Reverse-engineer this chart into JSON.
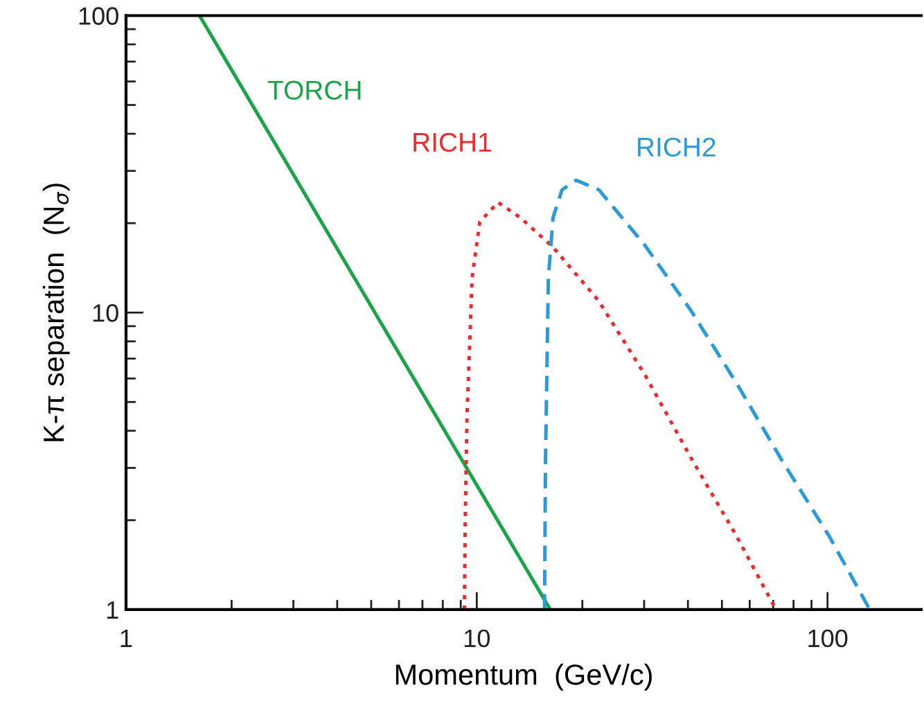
{
  "chart_data": {
    "type": "line",
    "xlabel": "Momentum  (GeV/c)",
    "ylabel": "K-π separation  (N$_{σ}$)",
    "log": "xy",
    "xlim": [
      1,
      185
    ],
    "ylim": [
      1,
      100
    ],
    "xticks": [
      1,
      10,
      100
    ],
    "yticks": [
      1,
      10,
      100
    ],
    "grid": false,
    "legend": false,
    "marker": "none",
    "series": [
      {
        "name": "TORCH",
        "color": "#1aa448",
        "line_style": "solid",
        "x": [
          1.62,
          16.2
        ],
        "values": [
          100,
          1
        ]
      },
      {
        "name": "RICH1",
        "color": "#ee2a2f",
        "line_style": "dotted",
        "x": [
          9.22,
          9.27,
          9.38,
          9.7,
          10.2,
          11.5,
          13.3,
          16.5,
          22.2,
          30.1,
          40.7,
          55.0,
          71.3
        ],
        "values": [
          1,
          1.97,
          4.49,
          13.1,
          20.2,
          23.5,
          20.9,
          16.6,
          11.0,
          6.2,
          3.26,
          1.77,
          1
        ]
      },
      {
        "name": "RICH2",
        "color": "#2a9ad8",
        "line_style": "dashed",
        "x": [
          15.6,
          15.7,
          16.0,
          16.5,
          17.5,
          19.2,
          22.3,
          30.1,
          40.7,
          55.1,
          74.6,
          101,
          132
        ],
        "values": [
          1,
          3.14,
          13.1,
          20.9,
          25.9,
          27.9,
          25.9,
          16.9,
          10.2,
          5.77,
          3.14,
          1.77,
          1
        ]
      }
    ]
  }
}
